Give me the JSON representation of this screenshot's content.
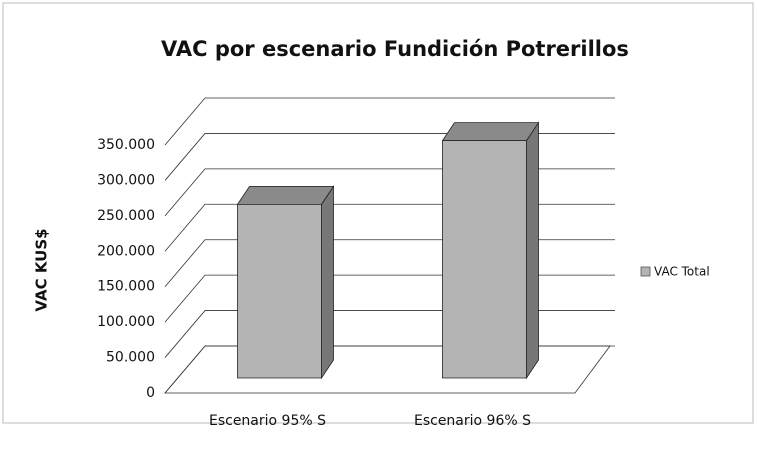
{
  "chart_data": {
    "type": "bar3d",
    "title": "VAC por escenario Fundición Potrerillos",
    "y_label": "VAC KUS$",
    "categories": [
      "Escenario 95% S",
      "Escenario 96% S"
    ],
    "series": [
      {
        "name": "VAC Total",
        "color": "#b4b4b4",
        "values": [
          245000,
          335000
        ]
      }
    ],
    "ylim": [
      0,
      350000
    ],
    "yticks": [
      0,
      {
        "value": 50000,
        "label": "50.000"
      },
      {
        "value": 100000,
        "label": "100.000"
      },
      {
        "value": 150000,
        "label": "150.000"
      },
      {
        "value": 200000,
        "label": "200.000"
      },
      {
        "value": 250000,
        "label": "250.000"
      },
      {
        "value": 300000,
        "label": "300.000"
      },
      {
        "value": 350000,
        "label": "350.000"
      }
    ],
    "grid": true
  }
}
